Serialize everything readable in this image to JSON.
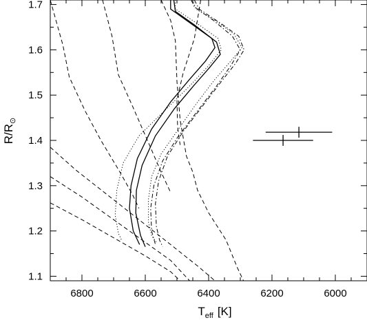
{
  "chart_data": {
    "type": "line",
    "title": "",
    "xlabel": {
      "main": "T",
      "sub": "eff",
      "unit": "[K]"
    },
    "ylabel": {
      "main": "R/R",
      "sub": "⊙"
    },
    "xlim": [
      6900,
      5900
    ],
    "ylim": [
      1.09,
      1.71
    ],
    "x_reversed": true,
    "x_ticks": [
      6800,
      6600,
      6400,
      6200,
      6000
    ],
    "y_ticks": [
      1.1,
      1.2,
      1.3,
      1.4,
      1.5,
      1.6,
      1.7
    ],
    "x_tick_labels": [
      "6800",
      "6600",
      "6400",
      "6200",
      "6000"
    ],
    "y_tick_labels": [
      "1.1",
      "1.2",
      "1.3",
      "1.4",
      "1.5",
      "1.6",
      "1.7"
    ],
    "grid": false,
    "legend": null,
    "series": [
      {
        "style": "solid",
        "points": [
          [
            6520,
            1.71
          ],
          [
            6520,
            1.69
          ],
          [
            6460,
            1.66
          ],
          [
            6390,
            1.625
          ],
          [
            6380,
            1.605
          ],
          [
            6410,
            1.575
          ],
          [
            6460,
            1.535
          ],
          [
            6520,
            1.485
          ],
          [
            6580,
            1.425
          ],
          [
            6625,
            1.36
          ],
          [
            6645,
            1.3
          ],
          [
            6650,
            1.25
          ],
          [
            6638,
            1.2
          ],
          [
            6618,
            1.17
          ]
        ]
      },
      {
        "style": "solid",
        "points": [
          [
            6510,
            1.71
          ],
          [
            6505,
            1.685
          ],
          [
            6445,
            1.655
          ],
          [
            6375,
            1.617
          ],
          [
            6363,
            1.59
          ],
          [
            6398,
            1.56
          ],
          [
            6448,
            1.52
          ],
          [
            6508,
            1.47
          ],
          [
            6568,
            1.41
          ],
          [
            6610,
            1.345
          ],
          [
            6628,
            1.29
          ],
          [
            6630,
            1.24
          ],
          [
            6615,
            1.19
          ],
          [
            6600,
            1.165
          ]
        ]
      },
      {
        "style": "dotted",
        "points": [
          [
            6505,
            1.71
          ],
          [
            6505,
            1.69
          ],
          [
            6440,
            1.66
          ],
          [
            6370,
            1.625
          ],
          [
            6360,
            1.6
          ],
          [
            6400,
            1.565
          ],
          [
            6460,
            1.52
          ],
          [
            6540,
            1.465
          ],
          [
            6620,
            1.41
          ],
          [
            6670,
            1.35
          ],
          [
            6690,
            1.29
          ],
          [
            6695,
            1.235
          ],
          [
            6685,
            1.195
          ],
          [
            6675,
            1.18
          ]
        ]
      },
      {
        "style": "dotted",
        "points": [
          [
            6450,
            1.71
          ],
          [
            6440,
            1.69
          ],
          [
            6380,
            1.665
          ],
          [
            6320,
            1.635
          ],
          [
            6295,
            1.605
          ],
          [
            6330,
            1.575
          ],
          [
            6380,
            1.535
          ],
          [
            6440,
            1.48
          ],
          [
            6500,
            1.42
          ],
          [
            6550,
            1.37
          ],
          [
            6580,
            1.32
          ],
          [
            6590,
            1.27
          ],
          [
            6590,
            1.22
          ],
          [
            6580,
            1.19
          ],
          [
            6565,
            1.175
          ]
        ]
      },
      {
        "style": "dashdot",
        "points": [
          [
            6445,
            1.71
          ],
          [
            6430,
            1.69
          ],
          [
            6365,
            1.66
          ],
          [
            6305,
            1.63
          ],
          [
            6288,
            1.6
          ],
          [
            6315,
            1.57
          ],
          [
            6360,
            1.53
          ],
          [
            6420,
            1.475
          ],
          [
            6480,
            1.42
          ],
          [
            6530,
            1.365
          ],
          [
            6558,
            1.31
          ],
          [
            6568,
            1.26
          ],
          [
            6565,
            1.21
          ],
          [
            6555,
            1.18
          ],
          [
            6545,
            1.165
          ]
        ]
      },
      {
        "style": "dashdot",
        "points": [
          [
            6455,
            1.71
          ],
          [
            6445,
            1.695
          ],
          [
            6385,
            1.665
          ],
          [
            6325,
            1.63
          ],
          [
            6300,
            1.6
          ],
          [
            6330,
            1.565
          ],
          [
            6375,
            1.52
          ],
          [
            6435,
            1.465
          ],
          [
            6495,
            1.41
          ],
          [
            6545,
            1.355
          ],
          [
            6573,
            1.3
          ],
          [
            6583,
            1.25
          ],
          [
            6580,
            1.2
          ],
          [
            6568,
            1.17
          ]
        ]
      },
      {
        "style": "dashed",
        "points": [
          [
            6900,
            1.71
          ],
          [
            6860,
            1.61
          ],
          [
            6840,
            1.54
          ],
          [
            6790,
            1.465
          ],
          [
            6740,
            1.4
          ],
          [
            6680,
            1.33
          ],
          [
            6640,
            1.28
          ],
          [
            6620,
            1.25
          ]
        ]
      },
      {
        "style": "dashed",
        "points": [
          [
            6735,
            1.71
          ],
          [
            6705,
            1.63
          ],
          [
            6685,
            1.545
          ],
          [
            6640,
            1.475
          ],
          [
            6590,
            1.395
          ],
          [
            6550,
            1.33
          ],
          [
            6520,
            1.285
          ]
        ]
      },
      {
        "style": "dashed",
        "points": [
          [
            6550,
            1.71
          ],
          [
            6520,
            1.665
          ],
          [
            6505,
            1.62
          ],
          [
            6500,
            1.53
          ],
          [
            6490,
            1.445
          ],
          [
            6470,
            1.365
          ],
          [
            6450,
            1.33
          ],
          [
            6435,
            1.29
          ],
          [
            6400,
            1.24
          ],
          [
            6345,
            1.18
          ],
          [
            6310,
            1.12
          ],
          [
            6290,
            1.09
          ]
        ]
      },
      {
        "style": "dashed",
        "points": [
          [
            6425,
            1.71
          ],
          [
            6445,
            1.625
          ],
          [
            6480,
            1.55
          ],
          [
            6500,
            1.49
          ],
          [
            6498,
            1.43
          ],
          [
            6490,
            1.39
          ]
        ]
      },
      {
        "style": "dashed",
        "points": [
          [
            6900,
            1.385
          ],
          [
            6820,
            1.335
          ],
          [
            6720,
            1.28
          ],
          [
            6620,
            1.225
          ],
          [
            6520,
            1.17
          ],
          [
            6430,
            1.12
          ],
          [
            6380,
            1.09
          ]
        ]
      },
      {
        "style": "dashed",
        "points": [
          [
            6900,
            1.32
          ],
          [
            6800,
            1.275
          ],
          [
            6700,
            1.225
          ],
          [
            6600,
            1.175
          ],
          [
            6520,
            1.135
          ],
          [
            6460,
            1.09
          ]
        ]
      },
      {
        "style": "dashed",
        "points": [
          [
            6900,
            1.262
          ],
          [
            6800,
            1.225
          ],
          [
            6700,
            1.185
          ],
          [
            6600,
            1.145
          ],
          [
            6520,
            1.11
          ],
          [
            6490,
            1.09
          ]
        ]
      }
    ],
    "error_bars": [
      {
        "x": 6115,
        "y": 1.418,
        "xerr": 105,
        "yerr": 0.012
      },
      {
        "x": 6165,
        "y": 1.4,
        "xerr": 95,
        "yerr": 0.012
      }
    ]
  }
}
